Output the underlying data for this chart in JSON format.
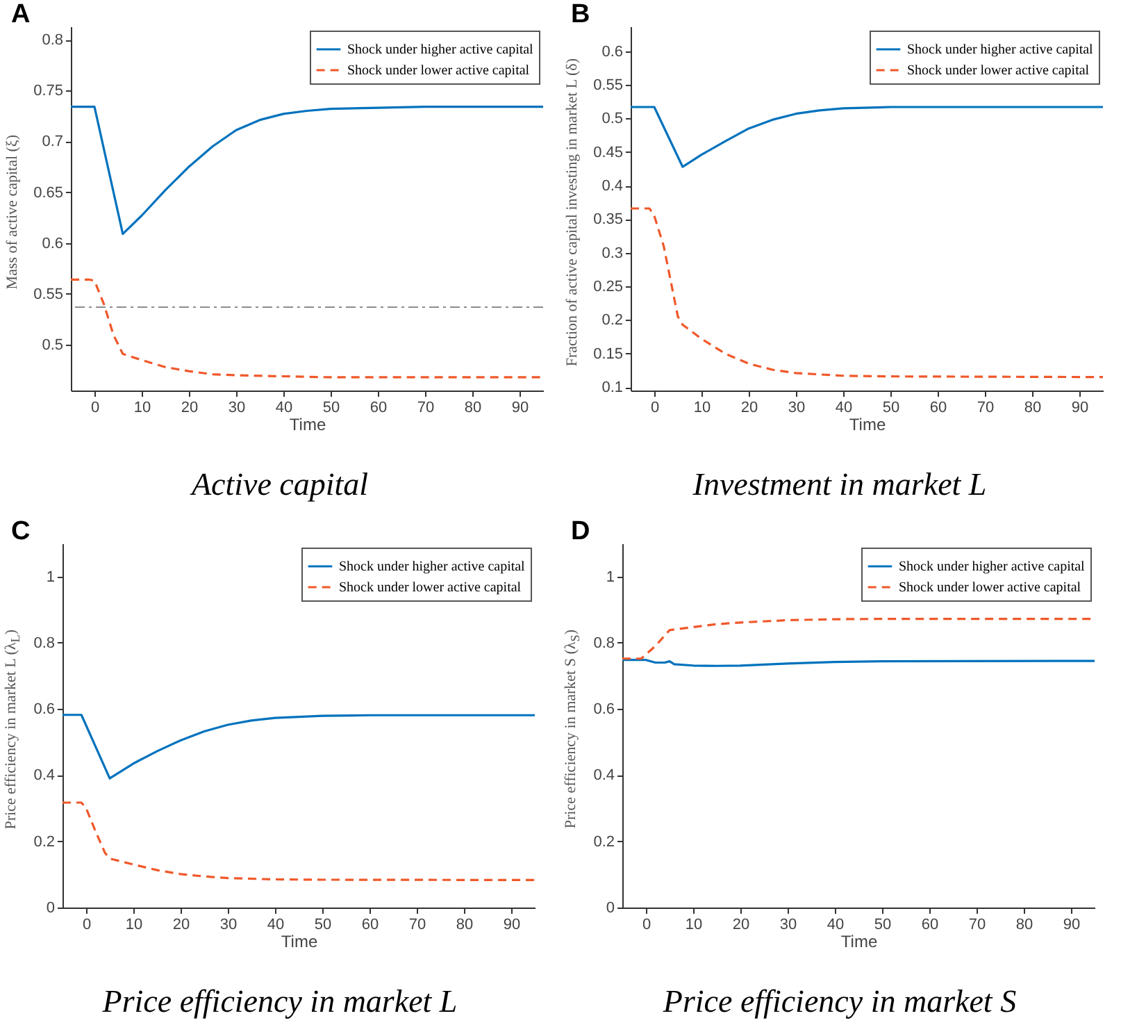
{
  "chart_data": [
    {
      "type": "line",
      "title": "Active capital",
      "ylabel": "Mass of active capital (ξ)",
      "xlabel": "Time",
      "annotations": [
        "A"
      ],
      "legend": "top right",
      "grid": false,
      "xlim": [
        -5,
        95
      ],
      "xticks": [
        0,
        10,
        20,
        30,
        40,
        50,
        60,
        70,
        80,
        90
      ],
      "ylim": [
        0.455,
        0.813
      ],
      "yticks": [
        0.5,
        0.55,
        0.6,
        0.65,
        0.7,
        0.75,
        0.8
      ],
      "ref_lines": [
        {
          "axis": "y",
          "value": 0.537,
          "color": "#8c8c8c",
          "line_style": "dashed"
        }
      ],
      "series": [
        {
          "name": "Shock under higher active capital",
          "color": "#0072bd",
          "line_style": "solid",
          "x": [
            -5,
            0,
            6,
            10,
            15,
            20,
            25,
            30,
            35,
            40,
            45,
            50,
            60,
            70,
            95
          ],
          "values": [
            0.734,
            0.734,
            0.609,
            0.627,
            0.652,
            0.675,
            0.695,
            0.711,
            0.721,
            0.727,
            0.73,
            0.732,
            0.733,
            0.734,
            0.734
          ]
        },
        {
          "name": "Shock under lower active capital",
          "color": "#f0582a",
          "line_style": "dashed",
          "x": [
            -5,
            -1,
            0,
            2,
            4,
            6,
            10,
            15,
            20,
            25,
            30,
            40,
            50,
            95
          ],
          "values": [
            0.564,
            0.564,
            0.563,
            0.54,
            0.51,
            0.491,
            0.485,
            0.478,
            0.474,
            0.471,
            0.47,
            0.469,
            0.468,
            0.468
          ]
        }
      ]
    },
    {
      "type": "line",
      "title": "Investment in market L",
      "ylabel": "Fraction of active capital investing in market L (δ)",
      "xlabel": "Time",
      "annotations": [
        "B"
      ],
      "legend": "top right",
      "grid": false,
      "xlim": [
        -5,
        95
      ],
      "xticks": [
        0,
        10,
        20,
        30,
        40,
        50,
        60,
        70,
        80,
        90
      ],
      "ylim": [
        0.095,
        0.637
      ],
      "yticks": [
        0.1,
        0.15,
        0.2,
        0.25,
        0.3,
        0.35,
        0.4,
        0.45,
        0.5,
        0.55,
        0.6
      ],
      "series": [
        {
          "name": "Shock under higher active capital",
          "color": "#0072bd",
          "line_style": "solid",
          "x": [
            -5,
            0,
            6,
            10,
            15,
            20,
            25,
            30,
            35,
            40,
            50,
            95
          ],
          "values": [
            0.517,
            0.517,
            0.428,
            0.446,
            0.466,
            0.485,
            0.498,
            0.507,
            0.512,
            0.515,
            0.517,
            0.517
          ]
        },
        {
          "name": "Shock under lower active capital",
          "color": "#f0582a",
          "line_style": "dashed",
          "x": [
            -5,
            -1,
            0,
            2,
            4,
            5,
            6,
            10,
            15,
            20,
            25,
            30,
            40,
            50,
            95
          ],
          "values": [
            0.366,
            0.366,
            0.355,
            0.31,
            0.24,
            0.205,
            0.193,
            0.172,
            0.15,
            0.135,
            0.126,
            0.121,
            0.117,
            0.116,
            0.115
          ]
        }
      ]
    },
    {
      "type": "line",
      "title": "Price efficiency in market L",
      "ylabel": "Price efficiency in market L (λ$_{L}$)",
      "xlabel": "Time",
      "annotations": [
        "C"
      ],
      "legend": "top right",
      "grid": false,
      "xlim": [
        -5,
        95
      ],
      "xticks": [
        0,
        10,
        20,
        30,
        40,
        50,
        60,
        70,
        80,
        90
      ],
      "ylim": [
        0,
        1.1
      ],
      "yticks": [
        0,
        0.2,
        0.4,
        0.6,
        0.8,
        1
      ],
      "series": [
        {
          "name": "Shock under higher active capital",
          "color": "#0072bd",
          "line_style": "solid",
          "x": [
            -5,
            -1,
            5,
            10,
            15,
            20,
            25,
            30,
            35,
            40,
            50,
            60,
            95
          ],
          "values": [
            0.582,
            0.582,
            0.39,
            0.435,
            0.472,
            0.505,
            0.532,
            0.552,
            0.565,
            0.573,
            0.579,
            0.581,
            0.581
          ]
        },
        {
          "name": "Shock under lower active capital",
          "color": "#f0582a",
          "line_style": "dashed",
          "x": [
            -5,
            -1,
            0,
            2,
            4,
            5,
            10,
            15,
            20,
            25,
            30,
            40,
            50,
            95
          ],
          "values": [
            0.317,
            0.317,
            0.3,
            0.23,
            0.165,
            0.148,
            0.13,
            0.113,
            0.101,
            0.094,
            0.089,
            0.085,
            0.084,
            0.083
          ]
        }
      ]
    },
    {
      "type": "line",
      "title": "Price efficiency in market S",
      "ylabel": "Price efficiency in market S (λ$_{S}$)",
      "xlabel": "Time",
      "annotations": [
        "D"
      ],
      "legend": "top right",
      "grid": false,
      "xlim": [
        -5,
        95
      ],
      "xticks": [
        0,
        10,
        20,
        30,
        40,
        50,
        60,
        70,
        80,
        90
      ],
      "ylim": [
        0,
        1.1
      ],
      "yticks": [
        0,
        0.2,
        0.4,
        0.6,
        0.8,
        1
      ],
      "series": [
        {
          "name": "Shock under higher active capital",
          "color": "#0072bd",
          "line_style": "solid",
          "x": [
            -5,
            0,
            2,
            4,
            5,
            6,
            10,
            15,
            20,
            30,
            40,
            50,
            95
          ],
          "values": [
            0.748,
            0.748,
            0.74,
            0.74,
            0.744,
            0.735,
            0.731,
            0.73,
            0.731,
            0.737,
            0.742,
            0.744,
            0.745
          ]
        },
        {
          "name": "Shock under lower active capital",
          "color": "#f0582a",
          "line_style": "dashed",
          "x": [
            -5,
            -1,
            2,
            5,
            6,
            10,
            15,
            20,
            30,
            40,
            50,
            95
          ],
          "values": [
            0.752,
            0.752,
            0.79,
            0.838,
            0.84,
            0.847,
            0.856,
            0.861,
            0.868,
            0.871,
            0.872,
            0.872
          ]
        }
      ]
    }
  ]
}
